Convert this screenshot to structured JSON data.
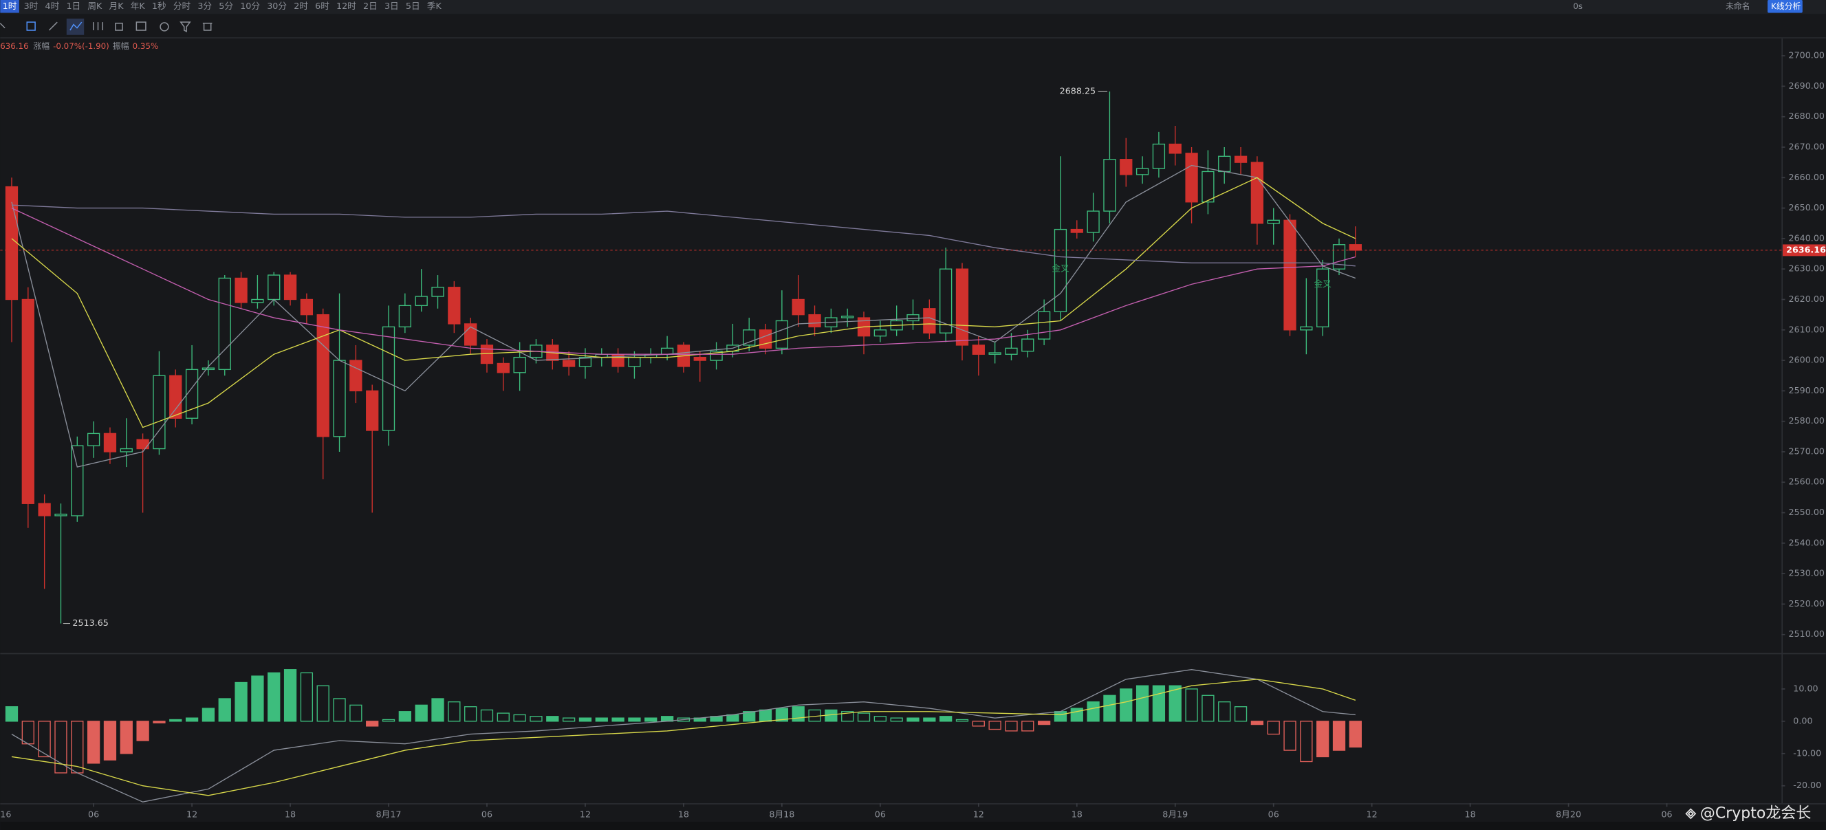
{
  "toolbar": {
    "intervals": [
      "1时",
      "3时",
      "4时",
      "1日",
      "周K",
      "月K",
      "年K",
      "1秒",
      "分时",
      "3分",
      "5分",
      "10分",
      "30分",
      "2时",
      "6时",
      "12时",
      "2日",
      "3日",
      "5日",
      "季K"
    ],
    "right": [
      "0s",
      "未命名",
      "K线分析"
    ]
  },
  "info": {
    "change_label": "涨幅",
    "change": "-0.07%(-1.90)",
    "amplitude_label": "振幅",
    "amplitude": "0.35%"
  },
  "watermark": "@Crypto龙会长",
  "chart_data": [
    {
      "type": "candlestick",
      "x": [
        1,
        2,
        3,
        4,
        5,
        6,
        7,
        8,
        9,
        10,
        11,
        12,
        13,
        14,
        15,
        16,
        17,
        18,
        19,
        20,
        21,
        22,
        23,
        24,
        25,
        26,
        27,
        28,
        29,
        30,
        31,
        32,
        33,
        34,
        35,
        36,
        37,
        38,
        39,
        40,
        41,
        42,
        43,
        44,
        45,
        46,
        47,
        48,
        49,
        50,
        51,
        52,
        53,
        54,
        55,
        56,
        57,
        58,
        59,
        60,
        61,
        62,
        63,
        64,
        65,
        66,
        67,
        68,
        69,
        70,
        71,
        72,
        73,
        74,
        75,
        76,
        77,
        78,
        79,
        80,
        81,
        82,
        83
      ],
      "open": [
        2657,
        2620,
        2553,
        2549,
        2549,
        2572,
        2576,
        2570,
        2574,
        2571,
        2595,
        2581,
        2597,
        2597,
        2627,
        2619,
        2620,
        2628,
        2620,
        2615,
        2575,
        2600,
        2590,
        2577,
        2611,
        2618,
        2621,
        2624,
        2612,
        2605,
        2599,
        2596,
        2601,
        2605,
        2600,
        2598,
        2601,
        2602,
        2598,
        2601,
        2602,
        2605,
        2601,
        2600,
        2603,
        2605,
        2610,
        2604,
        2620,
        2615,
        2611,
        2614,
        2614,
        2608,
        2610,
        2613,
        2617,
        2609,
        2630,
        2605,
        2602,
        2602,
        2603,
        2607,
        2616,
        2643,
        2642,
        2649,
        2666,
        2661,
        2663,
        2671,
        2668,
        2652,
        2662,
        2667,
        2665,
        2645,
        2646,
        2610,
        2611,
        2630,
        2638
      ],
      "high": [
        2660,
        2624,
        2556,
        2553,
        2575,
        2580,
        2578,
        2581,
        2576,
        2603,
        2597,
        2605,
        2600,
        2628,
        2629,
        2628,
        2629,
        2629,
        2622,
        2617,
        2622,
        2605,
        2592,
        2618,
        2622,
        2630,
        2628,
        2626,
        2614,
        2607,
        2601,
        2606,
        2607,
        2607,
        2603,
        2604,
        2604,
        2604,
        2603,
        2604,
        2608,
        2606,
        2603,
        2606,
        2612,
        2614,
        2612,
        2623,
        2628,
        2618,
        2617,
        2617,
        2616,
        2613,
        2618,
        2620,
        2620,
        2637,
        2632,
        2608,
        2606,
        2609,
        2610,
        2620,
        2667,
        2646,
        2655,
        2688.25,
        2673,
        2667,
        2675,
        2677,
        2670,
        2669,
        2670,
        2670,
        2667,
        2650,
        2648,
        2627,
        2633,
        2640,
        2644
      ],
      "low": [
        2606,
        2545,
        2525,
        2513.65,
        2547,
        2568,
        2566,
        2565,
        2550,
        2569,
        2578,
        2579,
        2595,
        2595,
        2617,
        2617,
        2618,
        2618,
        2612,
        2561,
        2570,
        2586,
        2550,
        2572,
        2609,
        2616,
        2617,
        2609,
        2602,
        2596,
        2590,
        2590,
        2599,
        2597,
        2595,
        2594,
        2598,
        2596,
        2594,
        2599,
        2600,
        2596,
        2593,
        2597,
        2601,
        2603,
        2602,
        2602,
        2611,
        2608,
        2609,
        2611,
        2602,
        2606,
        2608,
        2610,
        2607,
        2606,
        2600,
        2595,
        2599,
        2600,
        2601,
        2605,
        2613,
        2640,
        2639,
        2645,
        2657,
        2658,
        2660,
        2664,
        2645,
        2648,
        2658,
        2661,
        2638,
        2638,
        2608,
        2602,
        2608,
        2628,
        2634
      ],
      "close": [
        2620,
        2553,
        2549,
        2549.5,
        2572,
        2576,
        2570,
        2571,
        2571,
        2595,
        2581,
        2597,
        2597.5,
        2627,
        2619,
        2620,
        2628,
        2620,
        2615,
        2575,
        2600,
        2590,
        2577,
        2611,
        2618,
        2621,
        2624,
        2612,
        2605,
        2599,
        2596,
        2601,
        2605,
        2600,
        2598,
        2601,
        2602,
        2598,
        2601,
        2602,
        2604,
        2598,
        2600,
        2603,
        2605,
        2610,
        2604,
        2613,
        2615,
        2611,
        2614,
        2614.5,
        2608,
        2610,
        2613,
        2615,
        2609,
        2630,
        2605,
        2602,
        2602.5,
        2604,
        2607,
        2616,
        2643,
        2642,
        2649,
        2666,
        2661,
        2663,
        2671,
        2668,
        2652,
        2662,
        2667,
        2665,
        2645,
        2646,
        2610,
        2611,
        2630,
        2638,
        2636.16
      ],
      "up_color": "#3dbd7d",
      "down_color": "#d0312d",
      "xlim": [
        0.3,
        109
      ],
      "xticks": [
        {
          "value": 0,
          "label": "16"
        },
        {
          "value": 6,
          "label": "06"
        },
        {
          "value": 12,
          "label": "12"
        },
        {
          "value": 18,
          "label": "18"
        },
        {
          "value": 24,
          "label": "8月17"
        },
        {
          "value": 30,
          "label": "06"
        },
        {
          "value": 36,
          "label": "12"
        },
        {
          "value": 42,
          "label": "18"
        },
        {
          "value": 48,
          "label": "8月18"
        },
        {
          "value": 54,
          "label": "06"
        },
        {
          "value": 60,
          "label": "12"
        },
        {
          "value": 66,
          "label": "18"
        },
        {
          "value": 72,
          "label": "8月19"
        },
        {
          "value": 78,
          "label": "06"
        },
        {
          "value": 84,
          "label": "12"
        },
        {
          "value": 90,
          "label": "18"
        },
        {
          "value": 96,
          "label": "8月20"
        },
        {
          "value": 102,
          "label": "06"
        }
      ],
      "ylim": [
        2504.3,
        2705.7
      ],
      "yticks": [
        {
          "value": 2510,
          "label": "2510.00"
        },
        {
          "value": 2520,
          "label": "2520.00"
        },
        {
          "value": 2530,
          "label": "2530.00"
        },
        {
          "value": 2540,
          "label": "2540.00"
        },
        {
          "value": 2550,
          "label": "2550.00"
        },
        {
          "value": 2560,
          "label": "2560.00"
        },
        {
          "value": 2570,
          "label": "2570.00"
        },
        {
          "value": 2580,
          "label": "2580.00"
        },
        {
          "value": 2590,
          "label": "2590.00"
        },
        {
          "value": 2600,
          "label": "2600.00"
        },
        {
          "value": 2610,
          "label": "2610.00"
        },
        {
          "value": 2620,
          "label": "2620.00"
        },
        {
          "value": 2630,
          "label": "2630.00"
        },
        {
          "value": 2640,
          "label": "2640.00"
        },
        {
          "value": 2650,
          "label": "2650.00"
        },
        {
          "value": 2660,
          "label": "2660.00"
        },
        {
          "value": 2670,
          "label": "2670.00"
        },
        {
          "value": 2680,
          "label": "2680.00"
        },
        {
          "value": 2690,
          "label": "2690.00"
        },
        {
          "value": 2700,
          "label": "2700.00"
        }
      ],
      "overlays": [
        {
          "color": "#8a8f9a",
          "x": [
            1,
            5,
            9,
            13,
            17,
            21,
            25,
            29,
            33,
            37,
            41,
            45,
            49,
            53,
            57,
            61,
            65,
            69,
            73,
            77,
            81,
            83
          ],
          "values": [
            2652,
            2565,
            2570,
            2598,
            2620,
            2600,
            2590,
            2611,
            2600,
            2601,
            2602,
            2604,
            2612,
            2613,
            2614,
            2606,
            2622,
            2652,
            2664,
            2660,
            2631,
            2627
          ]
        },
        {
          "color": "#d8d84a",
          "x": [
            1,
            5,
            9,
            13,
            17,
            21,
            25,
            29,
            33,
            37,
            41,
            45,
            49,
            53,
            57,
            61,
            65,
            69,
            73,
            77,
            81,
            83
          ],
          "values": [
            2640,
            2622,
            2578,
            2586,
            2602,
            2610,
            2600,
            2602,
            2603,
            2601,
            2601,
            2603,
            2608,
            2611,
            2612,
            2611,
            2613,
            2630,
            2650,
            2660,
            2645,
            2640
          ]
        },
        {
          "color": "#c45fb0",
          "x": [
            1,
            5,
            9,
            13,
            17,
            21,
            25,
            29,
            33,
            37,
            41,
            45,
            49,
            53,
            57,
            61,
            65,
            69,
            73,
            77,
            81,
            83
          ],
          "values": [
            2650,
            2640,
            2630,
            2620,
            2614,
            2610,
            2607,
            2604,
            2603,
            2602,
            2602,
            2602,
            2604,
            2605,
            2606,
            2607,
            2610,
            2618,
            2625,
            2630,
            2631,
            2634
          ]
        },
        {
          "color": "#7f7a9a",
          "x": [
            1,
            5,
            9,
            13,
            17,
            21,
            25,
            29,
            33,
            37,
            41,
            45,
            49,
            53,
            57,
            61,
            65,
            69,
            73,
            77,
            81,
            83
          ],
          "values": [
            2651,
            2650,
            2650,
            2649,
            2648,
            2648,
            2647,
            2647,
            2648,
            2648,
            2649,
            2647,
            2645,
            2643,
            2641,
            2637,
            2634,
            2633,
            2632,
            2632,
            2632,
            2631
          ]
        }
      ],
      "annotations": [
        {
          "text": "金叉",
          "x": 65,
          "y": 2630
        },
        {
          "text": "金叉",
          "x": 81,
          "y": 2625
        }
      ]
    },
    {
      "type": "macd",
      "x": [
        1,
        2,
        3,
        4,
        5,
        6,
        7,
        8,
        9,
        10,
        11,
        12,
        13,
        14,
        15,
        16,
        17,
        18,
        19,
        20,
        21,
        22,
        23,
        24,
        25,
        26,
        27,
        28,
        29,
        30,
        31,
        32,
        33,
        34,
        35,
        36,
        37,
        38,
        39,
        40,
        41,
        42,
        43,
        44,
        45,
        46,
        47,
        48,
        49,
        50,
        51,
        52,
        53,
        54,
        55,
        56,
        57,
        58,
        59,
        60,
        61,
        62,
        63,
        64,
        65,
        66,
        67,
        68,
        69,
        70,
        71,
        72,
        73,
        74,
        75,
        76,
        77,
        78,
        79,
        80,
        81,
        82,
        83
      ],
      "values": [
        4.5,
        -7,
        -11,
        -16,
        -16,
        -13,
        -12,
        -10,
        -6,
        -0.5,
        0.5,
        1,
        4,
        7,
        12,
        14,
        15,
        16,
        15,
        11,
        7,
        5,
        -1.5,
        0.5,
        3,
        5,
        7,
        6,
        4.5,
        3.5,
        2.5,
        2,
        1.5,
        1.5,
        1,
        1,
        1,
        1,
        1,
        1,
        1.5,
        1,
        1,
        1.5,
        2,
        3,
        3.5,
        4,
        4.5,
        3.5,
        3.5,
        3,
        2.5,
        1.5,
        1,
        1,
        1,
        1.5,
        0.5,
        -1.5,
        -2.5,
        -3,
        -3,
        -1,
        3,
        4,
        6,
        8,
        10,
        11,
        11,
        11,
        10,
        8,
        6,
        4.5,
        -1,
        -4,
        -9,
        -12.5,
        -11,
        -9,
        -8
      ],
      "up_color": "#3dbd7d",
      "down_color": "#e0605a",
      "lines": [
        {
          "color": "#8a8f9a",
          "x": [
            1,
            5,
            9,
            13,
            17,
            21,
            25,
            29,
            33,
            37,
            41,
            45,
            49,
            53,
            57,
            61,
            65,
            69,
            73,
            77,
            81,
            83
          ],
          "values": [
            -4,
            -16,
            -25,
            -21,
            -9,
            -6,
            -7,
            -4,
            -3,
            -1.5,
            0,
            2,
            5,
            6,
            4,
            1,
            3,
            13,
            16,
            13,
            3,
            2
          ]
        },
        {
          "color": "#d8d84a",
          "x": [
            1,
            5,
            9,
            13,
            17,
            21,
            25,
            29,
            33,
            37,
            41,
            45,
            49,
            53,
            57,
            61,
            65,
            69,
            73,
            77,
            81,
            83
          ],
          "values": [
            -11,
            -14,
            -20,
            -23,
            -19,
            -14,
            -9,
            -6,
            -5,
            -4,
            -3,
            -1,
            1,
            3,
            3,
            2.5,
            2,
            6,
            11,
            13,
            10,
            6.5
          ]
        }
      ],
      "xlim": [
        0.3,
        109
      ],
      "ylim": [
        -25.4,
        20.4
      ],
      "yticks": [
        {
          "value": -20,
          "label": "-20.00"
        },
        {
          "value": -10,
          "label": "-10.00"
        },
        {
          "value": 0,
          "label": "0.00"
        },
        {
          "value": 10,
          "label": "10.00"
        }
      ]
    }
  ]
}
